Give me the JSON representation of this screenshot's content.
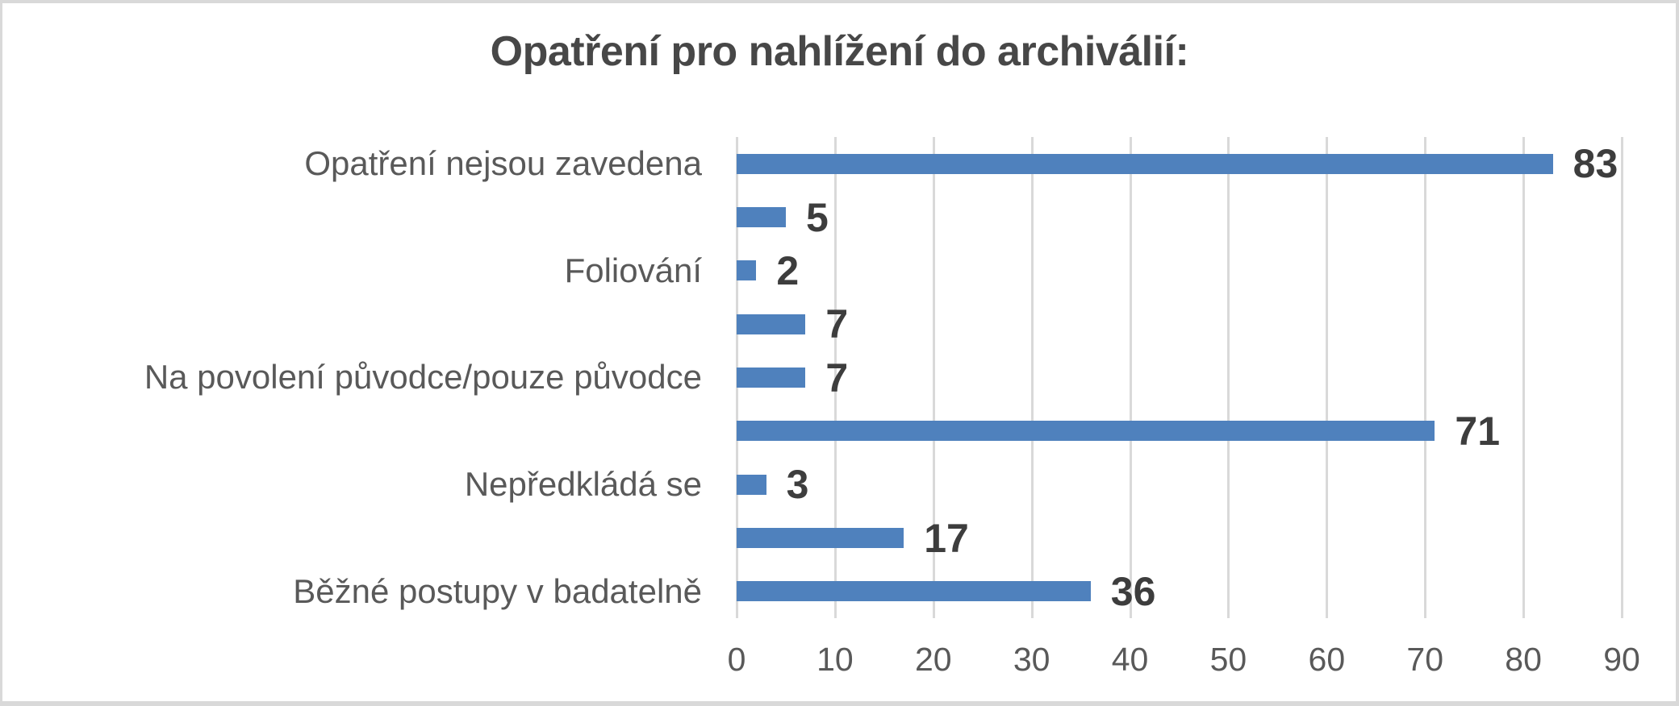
{
  "window": {
    "background_color": "#FFFFFF",
    "border_color": "#D9D9D9"
  },
  "chart_data": {
    "type": "bar",
    "orientation": "horizontal",
    "title": "Opatření pro nahlížení do archiválií:",
    "categories": [
      "Opatření nejsou zavedena",
      "",
      "Foliování",
      "",
      "Na povolení původce/pouze původce",
      "",
      "Nepředkládá se",
      "",
      "Běžné postupy v badatelně"
    ],
    "values": [
      83,
      5,
      2,
      7,
      7,
      71,
      3,
      17,
      36
    ],
    "data_labels": [
      83,
      5,
      2,
      7,
      7,
      71,
      3,
      17,
      36
    ],
    "xlabel": "",
    "ylabel": "",
    "xlim": [
      0,
      90
    ],
    "x_ticks": [
      0,
      10,
      20,
      30,
      40,
      50,
      60,
      70,
      80,
      90
    ],
    "grid": "vertical gridlines on",
    "legend_position": "none",
    "colors": {
      "bar": "#4F81BD",
      "gridline": "#D9D9D9",
      "title_text": "#474747",
      "category_text": "#595959",
      "tick_text": "#595959",
      "value_label_text": "#3D3D3D"
    }
  }
}
